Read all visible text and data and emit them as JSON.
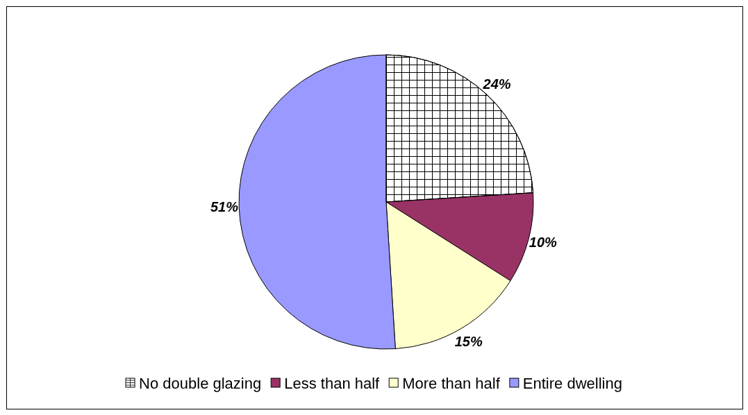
{
  "chart_data": {
    "type": "pie",
    "categories": [
      "No double glazing",
      "Less than half",
      "More than half",
      "Entire dwelling"
    ],
    "values": [
      24,
      10,
      15,
      51
    ],
    "colors": [
      "#ffffff",
      "#993366",
      "#ffffcc",
      "#9999ff"
    ],
    "value_labels": [
      "24%",
      "10%",
      "15%",
      "51%"
    ],
    "legend": "bottom"
  }
}
